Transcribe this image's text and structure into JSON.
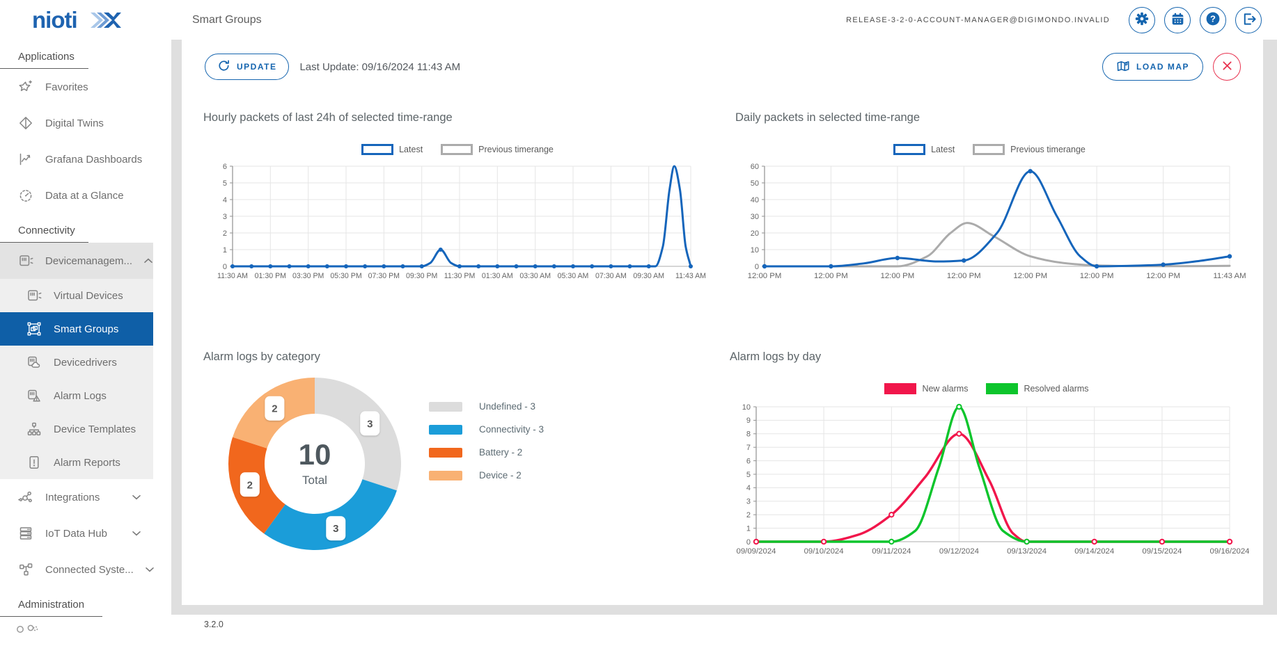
{
  "brand": {
    "logo_text": "niotix"
  },
  "header": {
    "page_title": "Smart Groups",
    "account": "RELEASE-3-2-0-ACCOUNT-MANAGER@DIGIMONDO.INVALID",
    "buttons": [
      "settings",
      "calendar",
      "help",
      "logout"
    ]
  },
  "sidebar": {
    "sections": [
      {
        "header": "Applications",
        "items": [
          {
            "label": "Favorites"
          },
          {
            "label": "Digital Twins"
          },
          {
            "label": "Grafana Dashboards"
          },
          {
            "label": "Data at a Glance"
          }
        ]
      },
      {
        "header": "Connectivity",
        "items": [
          {
            "label": "Devicemanagem...",
            "expanded": true,
            "children": [
              {
                "label": "Virtual Devices"
              },
              {
                "label": "Smart Groups",
                "selected": true
              },
              {
                "label": "Devicedrivers"
              },
              {
                "label": "Alarm Logs"
              },
              {
                "label": "Device Templates"
              },
              {
                "label": "Alarm Reports"
              }
            ]
          },
          {
            "label": "Integrations",
            "expanded": false
          },
          {
            "label": "IoT Data Hub",
            "expanded": false
          },
          {
            "label": "Connected Syste...",
            "expanded": false
          }
        ]
      },
      {
        "header": "Administration",
        "items": []
      }
    ]
  },
  "toolbar": {
    "update_label": "UPDATE",
    "last_update": "Last Update: 09/16/2024 11:43 AM",
    "load_map_label": "LOAD MAP"
  },
  "footer": {
    "version": "3.2.0"
  },
  "colors": {
    "brand_blue": "#1565AF",
    "line_blue": "#1565BB",
    "line_gray": "#ABABAB",
    "alarm_red": "#F1164B",
    "alarm_green": "#0DC52C",
    "close_red": "#E8314E",
    "selected_item_bg": "#0F5FA7"
  },
  "chart_data": [
    {
      "id": "hourly_packets",
      "type": "line",
      "title": "Hourly packets of last 24h of selected time-range",
      "legend": [
        {
          "label": "Latest",
          "color": "#1565BB",
          "style": "outline"
        },
        {
          "label": "Previous timerange",
          "color": "#ABABAB",
          "style": "outline"
        }
      ],
      "xlim": [
        0,
        24.22
      ],
      "x_tick_positions": [
        0,
        2,
        4,
        6,
        8,
        10,
        12,
        14,
        16,
        18,
        20,
        22,
        24.22
      ],
      "x_tick_labels": [
        "11:30 AM",
        "01:30 PM",
        "03:30 PM",
        "05:30 PM",
        "07:30 PM",
        "09:30 PM",
        "11:30 PM",
        "01:30 AM",
        "03:30 AM",
        "05:30 AM",
        "07:30 AM",
        "09:30 AM",
        "11:43 AM"
      ],
      "ylim": [
        0,
        6
      ],
      "y_ticks": [
        0,
        1,
        2,
        3,
        4,
        5,
        6
      ],
      "series": [
        {
          "name": "Latest",
          "color": "#1565BB",
          "points": [
            [
              0,
              0
            ],
            [
              1,
              0
            ],
            [
              2,
              0
            ],
            [
              3,
              0
            ],
            [
              4,
              0
            ],
            [
              5,
              0
            ],
            [
              6,
              0
            ],
            [
              7,
              0
            ],
            [
              8,
              0
            ],
            [
              9,
              0
            ],
            [
              10,
              0
            ],
            [
              10.45,
              0.2
            ],
            [
              11,
              1
            ],
            [
              11.55,
              0.2
            ],
            [
              12,
              0
            ],
            [
              13,
              0
            ],
            [
              14,
              0
            ],
            [
              15,
              0
            ],
            [
              16,
              0
            ],
            [
              17,
              0
            ],
            [
              18,
              0
            ],
            [
              19,
              0
            ],
            [
              20,
              0
            ],
            [
              21,
              0
            ],
            [
              22,
              0
            ],
            [
              22.35,
              0
            ],
            [
              22.75,
              1.2
            ],
            [
              23.1,
              4.6
            ],
            [
              23.35,
              6
            ],
            [
              23.65,
              4.6
            ],
            [
              23.95,
              1.2
            ],
            [
              24.22,
              0
            ]
          ],
          "markers": [
            [
              0,
              0
            ],
            [
              1,
              0
            ],
            [
              2,
              0
            ],
            [
              3,
              0
            ],
            [
              4,
              0
            ],
            [
              5,
              0
            ],
            [
              6,
              0
            ],
            [
              7,
              0
            ],
            [
              8,
              0
            ],
            [
              9,
              0
            ],
            [
              10,
              0
            ],
            [
              11,
              1
            ],
            [
              12,
              0
            ],
            [
              13,
              0
            ],
            [
              14,
              0
            ],
            [
              15,
              0
            ],
            [
              16,
              0
            ],
            [
              17,
              0
            ],
            [
              18,
              0
            ],
            [
              19,
              0
            ],
            [
              20,
              0
            ],
            [
              21,
              0
            ],
            [
              22,
              0
            ],
            [
              24.22,
              0
            ]
          ]
        }
      ]
    },
    {
      "id": "daily_packets",
      "type": "line",
      "title": "Daily packets in selected time-range",
      "legend": [
        {
          "label": "Latest",
          "color": "#1565BB",
          "style": "outline"
        },
        {
          "label": "Previous timerange",
          "color": "#ABABAB",
          "style": "outline"
        }
      ],
      "xlim": [
        0,
        7
      ],
      "x_tick_positions": [
        0,
        1,
        2,
        3,
        4,
        5,
        6,
        7
      ],
      "x_tick_labels": [
        "12:00 PM",
        "12:00 PM",
        "12:00 PM",
        "12:00 PM",
        "12:00 PM",
        "12:00 PM",
        "12:00 PM",
        "11:43 AM"
      ],
      "ylim": [
        0,
        60
      ],
      "y_ticks": [
        0,
        10,
        20,
        30,
        40,
        50,
        60
      ],
      "series": [
        {
          "name": "Previous timerange",
          "color": "#ABABAB",
          "points": [
            [
              0,
              0
            ],
            [
              1,
              0
            ],
            [
              2,
              0
            ],
            [
              2.45,
              6
            ],
            [
              2.8,
              20
            ],
            [
              3.05,
              26
            ],
            [
              3.45,
              18
            ],
            [
              4,
              6
            ],
            [
              4.5,
              2
            ],
            [
              5,
              0.5
            ],
            [
              5.6,
              0.1
            ],
            [
              6.3,
              0.1
            ],
            [
              7,
              0.3
            ]
          ],
          "markers": []
        },
        {
          "name": "Latest",
          "color": "#1565BB",
          "points": [
            [
              0,
              0
            ],
            [
              1,
              0
            ],
            [
              1.5,
              1.8
            ],
            [
              2,
              5
            ],
            [
              2.6,
              2.9
            ],
            [
              3,
              3.5
            ],
            [
              3.5,
              20
            ],
            [
              4,
              57
            ],
            [
              4.4,
              30
            ],
            [
              4.75,
              6
            ],
            [
              5,
              0
            ],
            [
              5.5,
              0.3
            ],
            [
              6,
              1
            ],
            [
              6.5,
              3
            ],
            [
              7,
              6
            ]
          ],
          "markers": [
            [
              0,
              0
            ],
            [
              1,
              0
            ],
            [
              2,
              5
            ],
            [
              3,
              3.5
            ],
            [
              4,
              57
            ],
            [
              5,
              0
            ],
            [
              6,
              1
            ],
            [
              7,
              6
            ]
          ]
        }
      ]
    },
    {
      "id": "alarm_categories",
      "type": "donut",
      "title": "Alarm logs by category",
      "total": 10,
      "total_label": "Total",
      "slices": [
        {
          "name": "Undefined",
          "value": 3,
          "label": "Undefined - 3",
          "color": "#DCDCDC"
        },
        {
          "name": "Connectivity",
          "value": 3,
          "label": "Connectivity - 3",
          "color": "#1B9DD9"
        },
        {
          "name": "Battery",
          "value": 2,
          "label": "Battery - 2",
          "color": "#F1671D"
        },
        {
          "name": "Device",
          "value": 2,
          "label": "Device - 2",
          "color": "#F9B173"
        }
      ]
    },
    {
      "id": "alarms_by_day",
      "type": "line",
      "title": "Alarm logs by day",
      "legend": [
        {
          "label": "New alarms",
          "color": "#F1164B",
          "style": "fill"
        },
        {
          "label": "Resolved alarms",
          "color": "#0DC52C",
          "style": "fill"
        }
      ],
      "xlim": [
        0,
        7
      ],
      "x_tick_positions": [
        0,
        1,
        2,
        3,
        4,
        5,
        6,
        7
      ],
      "x_tick_labels": [
        "09/09/2024",
        "09/10/2024",
        "09/11/2024",
        "09/12/2024",
        "09/13/2024",
        "09/14/2024",
        "09/15/2024",
        "09/16/2024"
      ],
      "ylim": [
        0,
        10
      ],
      "y_ticks": [
        0,
        1,
        2,
        3,
        4,
        5,
        6,
        7,
        8,
        9,
        10
      ],
      "series": [
        {
          "name": "New alarms",
          "color": "#F1164B",
          "points": [
            [
              0,
              0
            ],
            [
              1,
              0
            ],
            [
              1.5,
              0.5
            ],
            [
              2,
              2
            ],
            [
              2.5,
              4.8
            ],
            [
              3,
              8
            ],
            [
              3.45,
              4.5
            ],
            [
              3.8,
              0.6
            ],
            [
              4,
              0
            ],
            [
              5,
              0
            ],
            [
              6,
              0
            ],
            [
              7,
              0
            ]
          ],
          "markers": [
            [
              0,
              0
            ],
            [
              1,
              0
            ],
            [
              2,
              2
            ],
            [
              3,
              8
            ],
            [
              4,
              0
            ],
            [
              5,
              0
            ],
            [
              6,
              0
            ],
            [
              7,
              0
            ]
          ]
        },
        {
          "name": "Resolved alarms",
          "color": "#0DC52C",
          "points": [
            [
              0,
              0
            ],
            [
              1,
              0
            ],
            [
              2,
              0
            ],
            [
              2.35,
              0.8
            ],
            [
              2.7,
              5.5
            ],
            [
              3,
              10
            ],
            [
              3.3,
              5.5
            ],
            [
              3.65,
              0.8
            ],
            [
              4,
              0
            ],
            [
              5,
              0
            ],
            [
              6,
              0
            ],
            [
              7,
              0
            ]
          ],
          "markers": [
            [
              2,
              0
            ],
            [
              3,
              10
            ],
            [
              4,
              0
            ]
          ]
        }
      ]
    }
  ]
}
